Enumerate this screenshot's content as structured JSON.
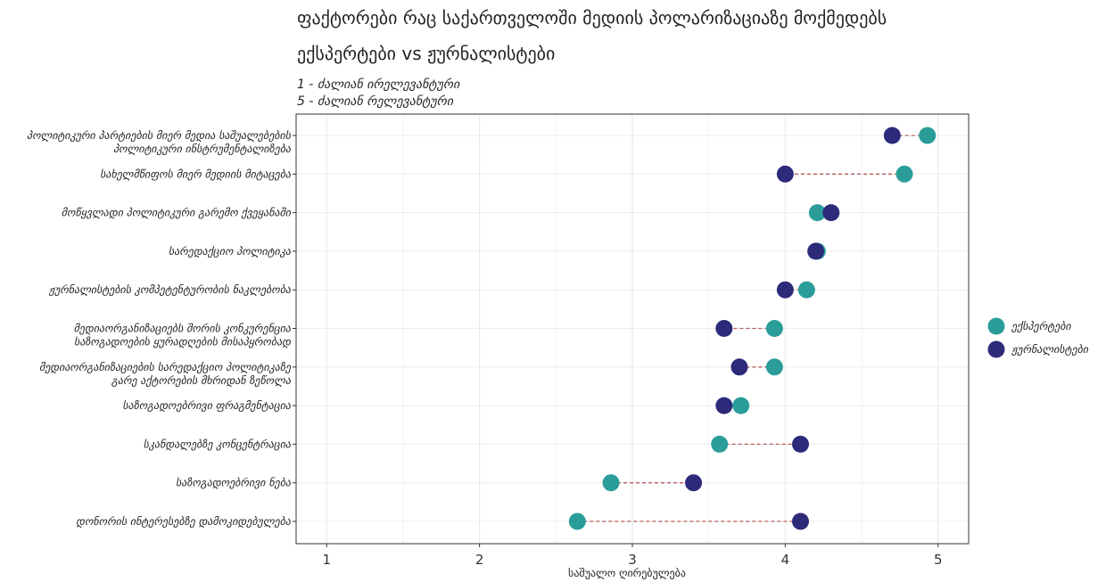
{
  "header": {
    "title_line1": "ფაქტორები რაც საქართველოში მედიის პოლარიზაციაზე მოქმედებს",
    "title_line2": "ექსპერტები vs ჟურნალისტები",
    "subtitle_line1": "1 - ძალიან ირელევანტური",
    "subtitle_line2": "5 - ძალიან რელევანტური"
  },
  "chart_data": {
    "type": "dumbbell",
    "xlabel": "საშუალო ღირებულება",
    "xlim": [
      0.8,
      5.2
    ],
    "xticks": [
      1,
      2,
      3,
      4,
      5
    ],
    "grid": true,
    "legend_position": "right",
    "categories": [
      [
        "პოლიტიკური პარტიების მიერ მედია საშუალებების",
        "პოლიტიკური ინსტრუმენტალიზება"
      ],
      [
        "სახელმწიფოს მიერ მედიის მიტაცება"
      ],
      [
        "მოწყვლადი პოლიტიკური გარემო ქვეყანაში"
      ],
      [
        "სარედაქციო პოლიტიკა"
      ],
      [
        "ჟურნალისტების კომპეტენტურობის ნაკლებობა"
      ],
      [
        "მედიაორგანიზაციებს შორის კონკურენცია",
        "საზოგადოების ყურადღების მისაპყრობად"
      ],
      [
        "მედიაორგანიზაციების სარედაქციო პოლიტიკაზე",
        "გარე აქტორების მხრიდან ზეწოლა"
      ],
      [
        "საზოგადოებრივი ფრაგმენტაცია"
      ],
      [
        "სკანდალებზე კონცენტრაცია"
      ],
      [
        "საზოგადოებრივი ნება"
      ],
      [
        "დონორის ინტერესებზე დამოკიდებულება"
      ]
    ],
    "series": [
      {
        "name": "ექსპერტები",
        "color": "#2a9d99",
        "values": [
          4.93,
          4.78,
          4.21,
          4.21,
          4.14,
          3.93,
          3.93,
          3.71,
          3.57,
          2.86,
          2.64
        ]
      },
      {
        "name": "ჟურნალისტები",
        "color": "#2d2a7a",
        "values": [
          4.7,
          4.0,
          4.3,
          4.2,
          4.0,
          3.6,
          3.7,
          3.6,
          4.1,
          3.4,
          4.1
        ]
      }
    ],
    "connector_color": "#b85c5c"
  }
}
